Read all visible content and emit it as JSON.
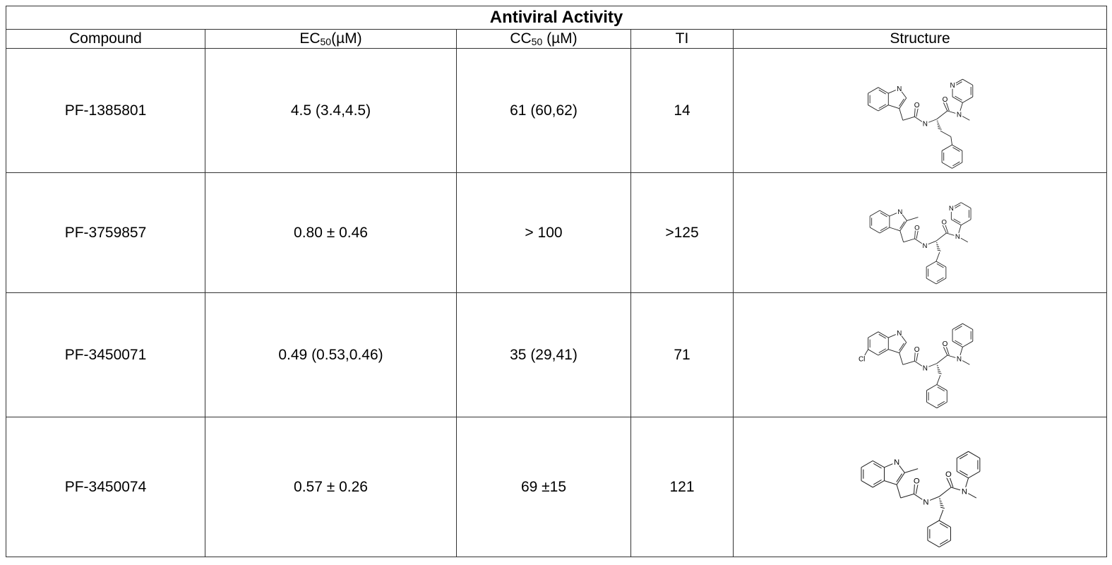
{
  "table": {
    "title": "Antiviral Activity",
    "header": [
      {
        "text": "Compound"
      },
      {
        "text": "EC",
        "sub": "50",
        "rest": "(µM)"
      },
      {
        "text": "CC",
        "sub": "50",
        "rest": " (µM)"
      },
      {
        "text": "TI"
      },
      {
        "text": "Structure"
      }
    ],
    "rows": [
      {
        "compound": "PF-1385801",
        "ec50": "4.5 (3.4,4.5)",
        "cc50": "61 (60,62)",
        "ti": "14",
        "structure": [
          "N",
          "O",
          "N",
          "O",
          "N",
          "N"
        ]
      },
      {
        "compound": "PF-3759857",
        "ec50": "0.80 ± 0.46",
        "cc50": "> 100",
        "ti": ">125",
        "structure": [
          "N",
          "O",
          "N",
          "O",
          "N",
          "N"
        ]
      },
      {
        "compound": "PF-3450071",
        "ec50": "0.49 (0.53,0.46)",
        "cc50": "35 (29,41)",
        "ti": "71",
        "structure": [
          "N",
          "Cl",
          "O",
          "N",
          "O",
          "N"
        ]
      },
      {
        "compound": "PF-3450074",
        "ec50": "0.57 ± 0.26",
        "cc50": "69 ±15",
        "ti": "121",
        "structure": [
          "N",
          "O",
          "N",
          "O",
          "N"
        ]
      }
    ]
  }
}
